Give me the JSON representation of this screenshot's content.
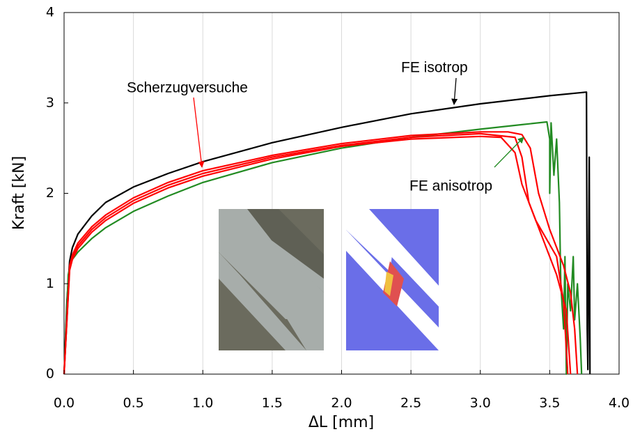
{
  "chart_data": {
    "type": "line",
    "x_label": "ΔL [mm]",
    "y_label": "Kraft [kN]",
    "xlim": [
      0,
      4
    ],
    "ylim": [
      0,
      4
    ],
    "xticks": [
      {
        "value": 0,
        "label": "0.0"
      },
      0.5,
      {
        "value": 1,
        "label": "1.0"
      },
      1.5,
      {
        "value": 2,
        "label": "2.0"
      },
      2.5,
      {
        "value": 3,
        "label": "3.0"
      },
      3.5,
      {
        "value": 4,
        "label": "4.0"
      }
    ],
    "yticks": [
      0,
      1,
      2,
      3,
      4
    ],
    "grid": true,
    "annotations": [
      "Scherzugversuche",
      "FE isotrop",
      "FE anisotrop"
    ],
    "series": [
      {
        "color": "#000000",
        "x": [
          0,
          0.02,
          0.04,
          0.06,
          0.1,
          0.2,
          0.3,
          0.5,
          0.75,
          1.0,
          1.5,
          2.0,
          2.5,
          3.0,
          3.5,
          3.765,
          3.77,
          3.775,
          3.785,
          3.79
        ],
        "values": [
          0,
          0.8,
          1.25,
          1.4,
          1.55,
          1.75,
          1.9,
          2.07,
          2.22,
          2.35,
          2.56,
          2.73,
          2.88,
          2.99,
          3.08,
          3.12,
          0.5,
          0.05,
          2.4,
          0
        ]
      },
      {
        "color": "#228b22",
        "x": [
          0,
          0.03,
          0.05,
          0.1,
          0.2,
          0.3,
          0.5,
          0.75,
          1.0,
          1.5,
          2.0,
          2.5,
          3.0,
          3.3,
          3.48,
          3.5,
          3.5,
          3.51,
          3.53,
          3.55,
          3.57,
          3.58,
          3.6,
          3.61,
          3.62,
          3.63,
          3.65,
          3.67,
          3.68,
          3.7,
          3.72,
          3.73
        ],
        "values": [
          0,
          1.1,
          1.25,
          1.35,
          1.5,
          1.62,
          1.8,
          1.97,
          2.12,
          2.34,
          2.5,
          2.62,
          2.71,
          2.76,
          2.79,
          2.6,
          2.0,
          2.78,
          2.2,
          2.6,
          1.9,
          1.0,
          0.5,
          1.3,
          0,
          1.0,
          0.7,
          1.3,
          0.6,
          1.0,
          0.4,
          0
        ]
      },
      {
        "color": "#ff0000",
        "x": [
          0,
          0.04,
          0.06,
          0.1,
          0.2,
          0.3,
          0.5,
          0.75,
          1.0,
          1.5,
          2.0,
          2.5,
          3.0,
          3.2,
          3.3,
          3.36,
          3.42,
          3.5,
          3.6,
          3.65,
          3.68,
          3.7
        ],
        "values": [
          0,
          1.2,
          1.32,
          1.45,
          1.63,
          1.76,
          1.95,
          2.12,
          2.25,
          2.42,
          2.55,
          2.64,
          2.68,
          2.68,
          2.65,
          2.5,
          2.0,
          1.6,
          1.2,
          0.9,
          0.5,
          0
        ]
      },
      {
        "color": "#ff0000",
        "x": [
          0,
          0.04,
          0.06,
          0.1,
          0.2,
          0.3,
          0.5,
          0.75,
          1.0,
          1.5,
          2.0,
          2.5,
          3.0,
          3.25,
          3.3,
          3.35,
          3.45,
          3.55,
          3.62,
          3.65
        ],
        "values": [
          0,
          1.18,
          1.3,
          1.42,
          1.6,
          1.73,
          1.92,
          2.09,
          2.22,
          2.4,
          2.53,
          2.62,
          2.66,
          2.62,
          2.4,
          1.9,
          1.5,
          1.1,
          0.7,
          0
        ]
      },
      {
        "color": "#ff0000",
        "x": [
          0,
          0.04,
          0.06,
          0.1,
          0.2,
          0.3,
          0.5,
          0.75,
          1.0,
          1.5,
          2.0,
          2.5,
          3.0,
          3.15,
          3.25,
          3.3,
          3.4,
          3.55,
          3.6,
          3.63
        ],
        "values": [
          0,
          1.15,
          1.27,
          1.39,
          1.57,
          1.7,
          1.89,
          2.06,
          2.19,
          2.38,
          2.52,
          2.6,
          2.63,
          2.62,
          2.45,
          2.1,
          1.7,
          1.3,
          0.8,
          0
        ]
      }
    ]
  }
}
